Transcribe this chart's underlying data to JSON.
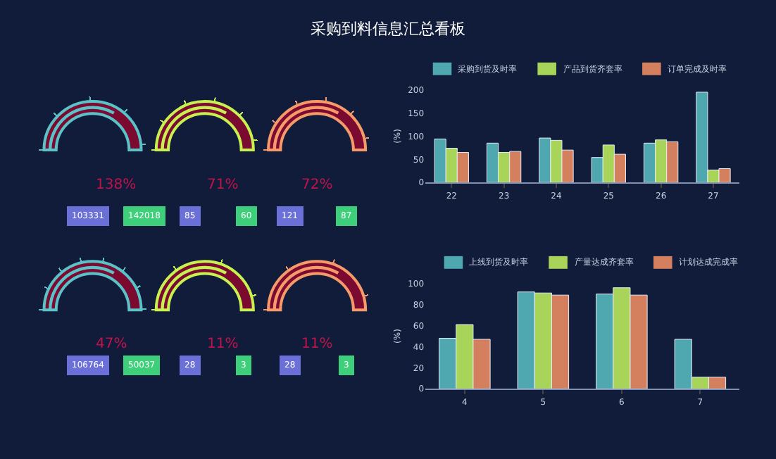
{
  "chart_data": [
    {
      "type": "other",
      "title": "采购到料信息汇总看板"
    },
    {
      "type": "other",
      "values": [
        138
      ],
      "value_labels": [
        "138%"
      ],
      "color": "#5bc3c8",
      "annotations": [
        "103331",
        "142018"
      ]
    },
    {
      "type": "other",
      "values": [
        71
      ],
      "value_labels": [
        "71%"
      ],
      "color": "#c8f050",
      "annotations": [
        "85",
        "60"
      ]
    },
    {
      "type": "other",
      "values": [
        72
      ],
      "value_labels": [
        "72%"
      ],
      "color": "#f79a6a",
      "annotations": [
        "121",
        "87"
      ]
    },
    {
      "type": "other",
      "values": [
        47
      ],
      "value_labels": [
        "47%"
      ],
      "color": "#5bc3c8",
      "annotations": [
        "106764",
        "50037"
      ]
    },
    {
      "type": "other",
      "values": [
        11
      ],
      "value_labels": [
        "11%"
      ],
      "color": "#c8f050",
      "annotations": [
        "28",
        "3"
      ]
    },
    {
      "type": "other",
      "values": [
        11
      ],
      "value_labels": [
        "11%"
      ],
      "color": "#f79a6a",
      "annotations": [
        "28",
        "3"
      ]
    },
    {
      "type": "bar",
      "ylabel": "(%)",
      "categories": [
        "22",
        "23",
        "24",
        "25",
        "26",
        "27"
      ],
      "ylim": [
        0,
        200
      ],
      "yticks": [
        0,
        50,
        100,
        150,
        200
      ],
      "legend": "top",
      "series": [
        {
          "name": "采购到货及时率",
          "color": "#4fa8b0",
          "values": [
            94,
            85,
            96,
            54,
            85,
            195
          ]
        },
        {
          "name": "产品到货齐套率",
          "color": "#a8d45a",
          "values": [
            74,
            65,
            91,
            81,
            92,
            27
          ]
        },
        {
          "name": "订单完成及时率",
          "color": "#d4805e",
          "values": [
            65,
            67,
            70,
            61,
            88,
            30
          ]
        }
      ]
    },
    {
      "type": "bar",
      "ylabel": "(%)",
      "categories": [
        "4",
        "5",
        "6",
        "7"
      ],
      "ylim": [
        0,
        100
      ],
      "yticks": [
        0,
        20,
        40,
        60,
        80,
        100
      ],
      "legend": "top",
      "series": [
        {
          "name": "上线到货及时率",
          "color": "#4fa8b0",
          "values": [
            48,
            92,
            90,
            47
          ]
        },
        {
          "name": "产量达成齐套率",
          "color": "#a8d45a",
          "values": [
            61,
            91,
            96,
            11
          ]
        },
        {
          "name": "计划达成完成率",
          "color": "#d4805e",
          "values": [
            47,
            89,
            89,
            11
          ]
        }
      ]
    }
  ]
}
